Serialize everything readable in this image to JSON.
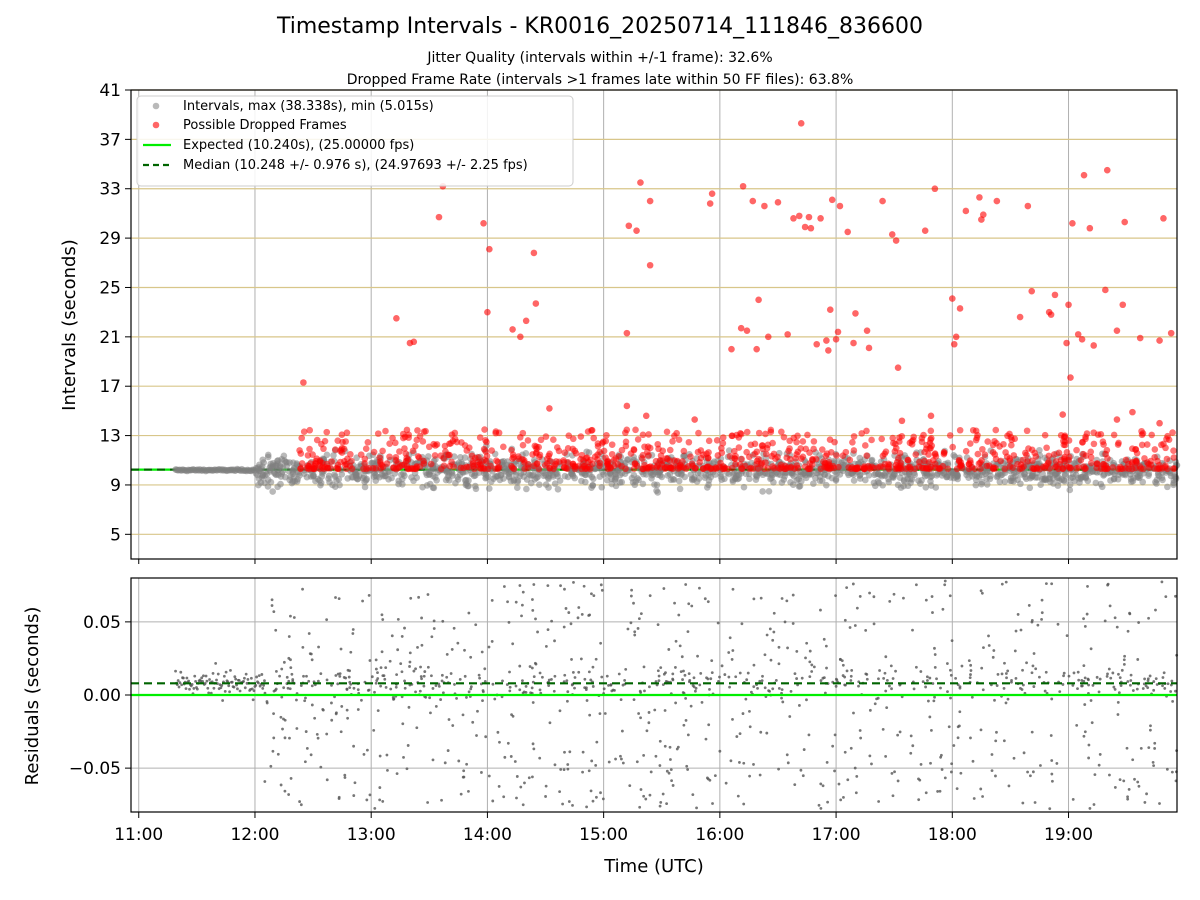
{
  "figure": {
    "title": "Timestamp Intervals - KR0016_20250714_111846_836600",
    "subtitle_jitter": "Jitter Quality (intervals within +/-1 frame): 32.6%",
    "subtitle_dropped": "Dropped Frame Rate (intervals >1 frames late within 50 FF files): 63.8%"
  },
  "chart_data": [
    {
      "type": "scatter",
      "ylabel": "Intervals (seconds)",
      "ylim": [
        3.0,
        41.0
      ],
      "xlim": [
        "10:56",
        "19:56"
      ],
      "yticks": [
        "5",
        "9",
        "13",
        "17",
        "21",
        "25",
        "29",
        "33",
        "37",
        "41"
      ],
      "grid": "on",
      "legend_position": "top-left",
      "legend": [
        "Intervals, max (38.338s), min (5.015s)",
        "Possible Dropped Frames",
        "Expected (10.240s), (25.00000 fps)",
        "Median (10.248 +/- 0.976 s), (24.97693 +/- 2.25 fps)"
      ],
      "colors": {
        "intervals": "#808080",
        "dropped": "#ff0000",
        "expected": "#00ee00",
        "median": "#006400",
        "hgrid": "#d8c68a",
        "vgrid": "#b0b0b0"
      },
      "expected_y": 10.24,
      "median_y": 10.248,
      "dropped_points": [
        {
          "x": "12:25",
          "y": 17.3
        },
        {
          "x": "13:13",
          "y": 22.5
        },
        {
          "x": "13:20",
          "y": 20.5
        },
        {
          "x": "13:22",
          "y": 20.6
        },
        {
          "x": "13:35",
          "y": 30.7
        },
        {
          "x": "13:37",
          "y": 33.2
        },
        {
          "x": "13:58",
          "y": 30.2
        },
        {
          "x": "14:00",
          "y": 23.0
        },
        {
          "x": "14:01",
          "y": 28.1
        },
        {
          "x": "14:13",
          "y": 21.6
        },
        {
          "x": "14:17",
          "y": 21.0
        },
        {
          "x": "14:20",
          "y": 22.3
        },
        {
          "x": "14:24",
          "y": 27.8
        },
        {
          "x": "14:25",
          "y": 23.7
        },
        {
          "x": "15:12",
          "y": 21.3
        },
        {
          "x": "15:13",
          "y": 30.0
        },
        {
          "x": "15:17",
          "y": 29.6
        },
        {
          "x": "15:19",
          "y": 33.5
        },
        {
          "x": "15:24",
          "y": 32.0
        },
        {
          "x": "15:24",
          "y": 26.8
        },
        {
          "x": "15:55",
          "y": 31.8
        },
        {
          "x": "15:56",
          "y": 32.6
        },
        {
          "x": "16:06",
          "y": 20.0
        },
        {
          "x": "16:11",
          "y": 21.7
        },
        {
          "x": "16:12",
          "y": 33.2
        },
        {
          "x": "16:14",
          "y": 21.5
        },
        {
          "x": "16:17",
          "y": 32.0
        },
        {
          "x": "16:19",
          "y": 20.0
        },
        {
          "x": "16:20",
          "y": 24.0
        },
        {
          "x": "16:23",
          "y": 31.6
        },
        {
          "x": "16:25",
          "y": 21.0
        },
        {
          "x": "16:30",
          "y": 31.9
        },
        {
          "x": "16:35",
          "y": 21.2
        },
        {
          "x": "16:38",
          "y": 30.6
        },
        {
          "x": "16:41",
          "y": 30.8
        },
        {
          "x": "16:42",
          "y": 38.3
        },
        {
          "x": "16:44",
          "y": 29.9
        },
        {
          "x": "16:46",
          "y": 30.7
        },
        {
          "x": "16:47",
          "y": 29.8
        },
        {
          "x": "16:50",
          "y": 20.4
        },
        {
          "x": "16:52",
          "y": 30.6
        },
        {
          "x": "16:55",
          "y": 20.7
        },
        {
          "x": "16:56",
          "y": 19.9
        },
        {
          "x": "16:57",
          "y": 23.2
        },
        {
          "x": "16:58",
          "y": 32.1
        },
        {
          "x": "17:00",
          "y": 20.8
        },
        {
          "x": "17:01",
          "y": 21.4
        },
        {
          "x": "17:02",
          "y": 31.6
        },
        {
          "x": "17:06",
          "y": 29.5
        },
        {
          "x": "17:09",
          "y": 20.5
        },
        {
          "x": "17:10",
          "y": 22.9
        },
        {
          "x": "17:16",
          "y": 21.5
        },
        {
          "x": "17:17",
          "y": 20.1
        },
        {
          "x": "17:24",
          "y": 32.0
        },
        {
          "x": "17:29",
          "y": 29.3
        },
        {
          "x": "17:31",
          "y": 28.8
        },
        {
          "x": "17:32",
          "y": 18.5
        },
        {
          "x": "17:46",
          "y": 29.6
        },
        {
          "x": "17:51",
          "y": 33.0
        },
        {
          "x": "18:00",
          "y": 24.1
        },
        {
          "x": "18:01",
          "y": 20.4
        },
        {
          "x": "18:02",
          "y": 21.0
        },
        {
          "x": "18:04",
          "y": 23.3
        },
        {
          "x": "18:07",
          "y": 31.2
        },
        {
          "x": "18:14",
          "y": 32.3
        },
        {
          "x": "18:15",
          "y": 30.5
        },
        {
          "x": "18:16",
          "y": 30.9
        },
        {
          "x": "18:23",
          "y": 32.0
        },
        {
          "x": "18:35",
          "y": 22.6
        },
        {
          "x": "18:39",
          "y": 31.6
        },
        {
          "x": "18:41",
          "y": 24.7
        },
        {
          "x": "18:50",
          "y": 23.0
        },
        {
          "x": "18:51",
          "y": 22.8
        },
        {
          "x": "18:53",
          "y": 24.4
        },
        {
          "x": "18:59",
          "y": 20.5
        },
        {
          "x": "19:00",
          "y": 23.6
        },
        {
          "x": "19:01",
          "y": 17.7
        },
        {
          "x": "19:02",
          "y": 30.2
        },
        {
          "x": "19:05",
          "y": 21.2
        },
        {
          "x": "19:07",
          "y": 20.8
        },
        {
          "x": "19:08",
          "y": 34.1
        },
        {
          "x": "19:11",
          "y": 29.8
        },
        {
          "x": "19:13",
          "y": 20.3
        },
        {
          "x": "19:19",
          "y": 24.8
        },
        {
          "x": "19:20",
          "y": 34.5
        },
        {
          "x": "19:25",
          "y": 21.5
        },
        {
          "x": "19:28",
          "y": 23.6
        },
        {
          "x": "19:29",
          "y": 30.3
        },
        {
          "x": "19:37",
          "y": 20.9
        },
        {
          "x": "19:47",
          "y": 20.7
        },
        {
          "x": "19:49",
          "y": 30.6
        },
        {
          "x": "19:53",
          "y": 21.3
        },
        {
          "x": "14:32",
          "y": 15.2
        },
        {
          "x": "15:12",
          "y": 15.4
        },
        {
          "x": "15:22",
          "y": 14.6
        },
        {
          "x": "15:47",
          "y": 14.3
        },
        {
          "x": "17:34",
          "y": 14.2
        },
        {
          "x": "17:49",
          "y": 14.6
        },
        {
          "x": "18:57",
          "y": 14.7
        },
        {
          "x": "19:25",
          "y": 14.3
        },
        {
          "x": "19:33",
          "y": 14.9
        },
        {
          "x": "19:47",
          "y": 14.0
        }
      ],
      "dense_region_note": "",
      "dense_intervals_span": {
        "start": "11:19",
        "end": "19:56",
        "center": 10.2,
        "spread": 1.6,
        "min": 5.015
      },
      "dense_dropped_span": {
        "start": "12:23",
        "end": "19:56",
        "center": 10.6,
        "band": [
          10.3,
          13.5
        ]
      }
    },
    {
      "type": "scatter",
      "xlabel": "Time (UTC)",
      "ylabel": "Residuals (seconds)",
      "ylim": [
        -0.08,
        0.08
      ],
      "xlim": [
        "10:56",
        "19:56"
      ],
      "yticks": [
        "0.05",
        "0.00",
        "−0.05"
      ],
      "xticks": [
        "11:00",
        "12:00",
        "13:00",
        "14:00",
        "15:00",
        "16:00",
        "17:00",
        "18:00",
        "19:00"
      ],
      "grid": "on",
      "expected_y": 0.0,
      "median_y": 0.008,
      "residuals_span": {
        "start": "11:19",
        "end": "19:56",
        "early_center": 0.008,
        "early_spread": 0.01
      }
    }
  ]
}
